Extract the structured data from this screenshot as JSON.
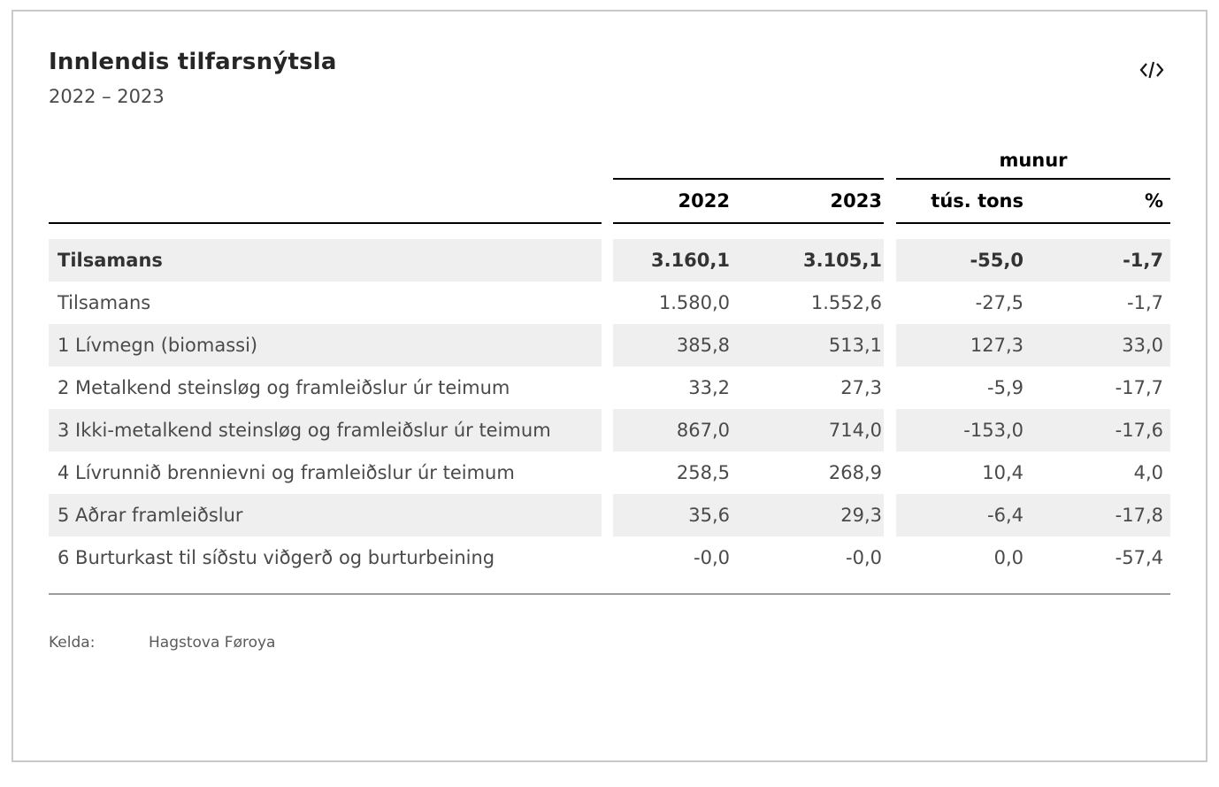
{
  "header": {
    "title": "Innlendis tilfarsnýtsla",
    "subtitle": "2022 – 2023"
  },
  "toolbar": {
    "embed_icon": "code-brackets"
  },
  "table": {
    "group_header": "munur",
    "columns": [
      "2022",
      "2023",
      "tús. tons",
      "%"
    ],
    "rows": [
      {
        "label": "Tilsamans",
        "bold": true,
        "v2022": "3.160,1",
        "v2023": "3.105,1",
        "tons": "-55,0",
        "pct": "-1,7"
      },
      {
        "label": "Tilsamans",
        "bold": false,
        "v2022": "1.580,0",
        "v2023": "1.552,6",
        "tons": "-27,5",
        "pct": "-1,7"
      },
      {
        "label": "1 Lívmegn (biomassi)",
        "bold": false,
        "v2022": "385,8",
        "v2023": "513,1",
        "tons": "127,3",
        "pct": "33,0"
      },
      {
        "label": "2 Metalkend steinsløg og framleiðslur úr teimum",
        "bold": false,
        "v2022": "33,2",
        "v2023": "27,3",
        "tons": "-5,9",
        "pct": "-17,7"
      },
      {
        "label": "3 Ikki-metalkend steinsløg og framleiðslur úr teimum",
        "bold": false,
        "v2022": "867,0",
        "v2023": "714,0",
        "tons": "-153,0",
        "pct": "-17,6"
      },
      {
        "label": "4 Lívrunnið brennievni og framleiðslur úr teimum",
        "bold": false,
        "v2022": "258,5",
        "v2023": "268,9",
        "tons": "10,4",
        "pct": "4,0"
      },
      {
        "label": "5 Aðrar framleiðslur",
        "bold": false,
        "v2022": "35,6",
        "v2023": "29,3",
        "tons": "-6,4",
        "pct": "-17,8"
      },
      {
        "label": "6 Burturkast til síðstu viðgerð og burturbeining",
        "bold": false,
        "v2022": "-0,0",
        "v2023": "-0,0",
        "tons": "0,0",
        "pct": "-57,4"
      }
    ]
  },
  "footer": {
    "source_label": "Kelda:",
    "source_value": "Hagstova Føroya"
  },
  "colors": {
    "stripe": "#efefef",
    "header_rule": "#000000",
    "table_bottom_rule": "#9b9b9b",
    "card_border": "#c9c9c9",
    "body_text": "#4a4a4a",
    "heading_text": "#262626",
    "muted_text": "#5a5a5a"
  },
  "chart_data": {
    "type": "table",
    "title": "Innlendis tilfarsnýtsla",
    "subtitle": "2022 – 2023",
    "column_groups": [
      "",
      "",
      "munur"
    ],
    "columns": [
      "",
      "2022",
      "2023",
      "tús. tons",
      "%"
    ],
    "rows": [
      [
        "Tilsamans",
        3160.1,
        3105.1,
        -55.0,
        -1.7
      ],
      [
        "Tilsamans",
        1580.0,
        1552.6,
        -27.5,
        -1.7
      ],
      [
        "1 Lívmegn (biomassi)",
        385.8,
        513.1,
        127.3,
        33.0
      ],
      [
        "2 Metalkend steinsløg og framleiðslur úr teimum",
        33.2,
        27.3,
        -5.9,
        -17.7
      ],
      [
        "3 Ikki-metalkend steinsløg og framleiðslur úr teimum",
        867.0,
        714.0,
        -153.0,
        -17.6
      ],
      [
        "4 Lívrunnið brennievni og framleiðslur úr teimum",
        258.5,
        268.9,
        10.4,
        4.0
      ],
      [
        "5 Aðrar framleiðslur",
        35.6,
        29.3,
        -6.4,
        -17.8
      ],
      [
        "6 Burturkast til síðstu viðgerð og burturbeining",
        -0.0,
        -0.0,
        0.0,
        -57.4
      ]
    ],
    "source": "Hagstova Føroya",
    "number_format": "da-DK (period thousands, comma decimals)"
  }
}
